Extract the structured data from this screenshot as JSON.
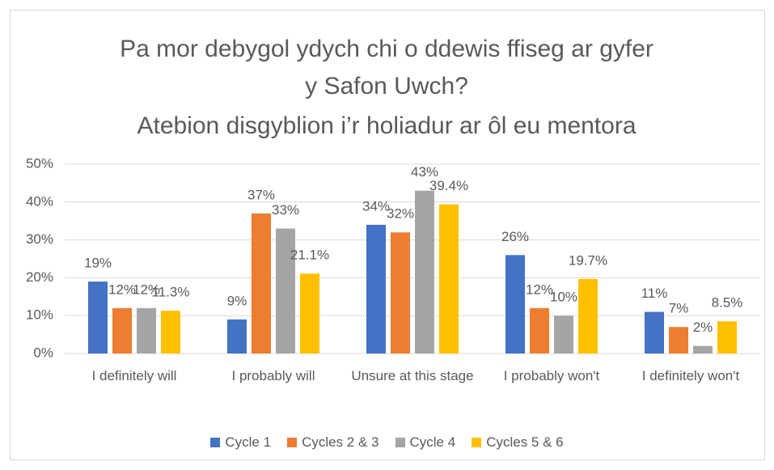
{
  "chart_data": {
    "type": "bar",
    "title": "Pa mor debygol ydych chi o ddewis ffiseg ar gyfer y Safon Uwch?",
    "subtitle": "Atebion disgyblion i’r holiadur ar ôl eu mentora",
    "categories": [
      "I definitely will",
      "I probably will",
      "Unsure at this stage",
      "I probably won't",
      "I definitely won't"
    ],
    "series": [
      {
        "name": "Cycle 1",
        "color": "#4472c4",
        "values": [
          19,
          9,
          34,
          26,
          11
        ],
        "value_labels": [
          "19%",
          "9%",
          "34%",
          "26%",
          "11%"
        ]
      },
      {
        "name": "Cycles 2 & 3",
        "color": "#ed7d31",
        "values": [
          12,
          37,
          32,
          12,
          7
        ],
        "value_labels": [
          "12%",
          "37%",
          "32%",
          "12%",
          "7%"
        ]
      },
      {
        "name": "Cycle 4",
        "color": "#a5a5a5",
        "values": [
          12,
          33,
          43,
          10,
          2
        ],
        "value_labels": [
          "12%",
          "33%",
          "43%",
          "10%",
          "2%"
        ]
      },
      {
        "name": "Cycles 5 & 6",
        "color": "#ffc000",
        "values": [
          11.3,
          21.1,
          39.4,
          19.7,
          8.5
        ],
        "value_labels": [
          "11.3%",
          "21.1%",
          "39.4%",
          "19.7%",
          "8.5%"
        ]
      }
    ],
    "ylim": [
      0,
      50
    ],
    "yticks": [
      {
        "value": 0,
        "label": "0%"
      },
      {
        "value": 10,
        "label": "10%"
      },
      {
        "value": 20,
        "label": "20%"
      },
      {
        "value": 30,
        "label": "30%"
      },
      {
        "value": 40,
        "label": "40%"
      },
      {
        "value": 50,
        "label": "50%"
      }
    ],
    "grid": true,
    "legend": "bottom"
  }
}
